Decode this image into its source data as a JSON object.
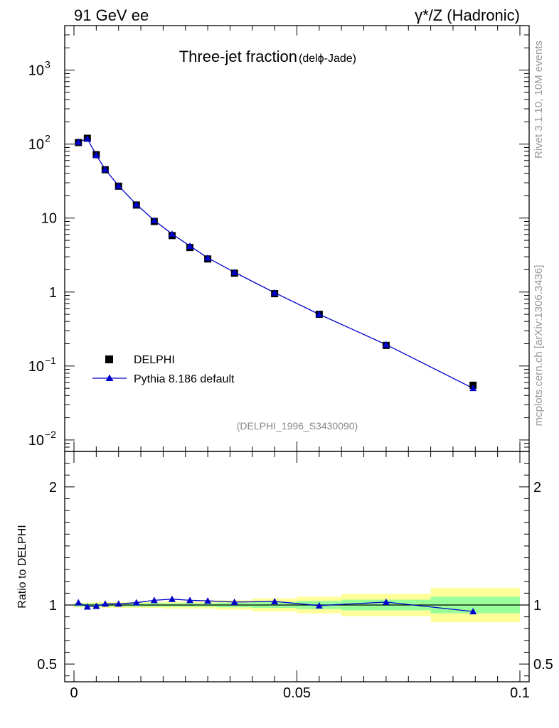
{
  "header": {
    "left": "91 GeV ee",
    "right": "γ*/Z (Hadronic)"
  },
  "side_text": {
    "rivet": "Rivet 3.1.10,  10M events",
    "mcplots": "mcplots.cern.ch [arXiv:1306.3436]"
  },
  "chart_data": [
    {
      "type": "scatter",
      "panel": "main",
      "title": "Three-jet fraction",
      "subtitle": "(delϕ-Jade)",
      "watermark": "(DELPHI_1996_S3430090)",
      "yscale": "log",
      "xlim": [
        0,
        0.1
      ],
      "ylim": [
        0.007,
        4000
      ],
      "ytick_labels": [
        {
          "value": 1000,
          "base": "10",
          "exp": "3"
        },
        {
          "value": 100,
          "base": "10",
          "exp": "2"
        },
        {
          "value": 10,
          "base": "10",
          "exp": ""
        },
        {
          "value": 1,
          "base": "1",
          "exp": ""
        },
        {
          "value": 0.1,
          "base": "10",
          "exp": "−1"
        },
        {
          "value": 0.01,
          "base": "10",
          "exp": "−2"
        }
      ],
      "legend": {
        "position": "lower-left",
        "entries": [
          "DELPHI",
          "Pythia 8.186 default"
        ]
      },
      "series": [
        {
          "name": "DELPHI",
          "marker": "square",
          "color": "#000000",
          "x": [
            0.001,
            0.003,
            0.005,
            0.007,
            0.01,
            0.014,
            0.018,
            0.022,
            0.026,
            0.03,
            0.036,
            0.045,
            0.055,
            0.07,
            0.0895
          ],
          "y": [
            105,
            120,
            72,
            45,
            27,
            15,
            9,
            5.8,
            4,
            2.8,
            1.8,
            0.95,
            0.5,
            0.19,
            0.055
          ]
        },
        {
          "name": "Pythia 8.186 default",
          "marker": "triangle",
          "color": "#0000cc",
          "x": [
            0.001,
            0.003,
            0.005,
            0.007,
            0.01,
            0.014,
            0.018,
            0.022,
            0.026,
            0.03,
            0.036,
            0.045,
            0.055,
            0.07,
            0.0895
          ],
          "y": [
            107,
            118,
            71,
            45.5,
            27.3,
            15.3,
            9.3,
            6.1,
            4.2,
            2.9,
            1.85,
            0.98,
            0.5,
            0.195,
            0.05
          ]
        }
      ]
    },
    {
      "type": "line",
      "panel": "ratio",
      "ylabel": "Ratio to DELPHI",
      "xlabel": "",
      "xlim": [
        0,
        0.1
      ],
      "ylim": [
        0.35,
        2.3
      ],
      "ytick_labels": [
        "2",
        "1",
        "0.5"
      ],
      "ytick_values": [
        2,
        1,
        0.5
      ],
      "xtick_labels": [
        "0",
        "0.05",
        "0.1"
      ],
      "xtick_values": [
        0,
        0.05,
        0.1
      ],
      "bands": {
        "bin_edges": [
          0,
          0.002,
          0.004,
          0.006,
          0.008,
          0.012,
          0.016,
          0.02,
          0.024,
          0.028,
          0.032,
          0.04,
          0.05,
          0.06,
          0.08,
          0.1
        ],
        "stat_low": [
          0.985,
          0.985,
          0.985,
          0.985,
          0.985,
          0.985,
          0.985,
          0.985,
          0.985,
          0.985,
          0.98,
          0.975,
          0.965,
          0.955,
          0.93
        ],
        "stat_high": [
          1.015,
          1.015,
          1.015,
          1.015,
          1.015,
          1.015,
          1.015,
          1.015,
          1.015,
          1.015,
          1.02,
          1.025,
          1.035,
          1.045,
          1.07
        ],
        "total_low": [
          0.98,
          0.98,
          0.975,
          0.975,
          0.975,
          0.975,
          0.975,
          0.97,
          0.97,
          0.97,
          0.96,
          0.945,
          0.93,
          0.905,
          0.855
        ],
        "total_high": [
          1.02,
          1.02,
          1.025,
          1.025,
          1.025,
          1.025,
          1.025,
          1.03,
          1.03,
          1.03,
          1.04,
          1.055,
          1.07,
          1.095,
          1.145
        ]
      },
      "series": [
        {
          "name": "Pythia 8.186 default",
          "color": "#0000cc",
          "x": [
            0.001,
            0.003,
            0.005,
            0.007,
            0.01,
            0.014,
            0.018,
            0.022,
            0.026,
            0.03,
            0.036,
            0.045,
            0.055,
            0.07,
            0.0895
          ],
          "y": [
            1.02,
            0.985,
            0.99,
            1.01,
            1.01,
            1.02,
            1.04,
            1.05,
            1.04,
            1.035,
            1.025,
            1.03,
            0.995,
            1.025,
            0.945
          ]
        }
      ]
    }
  ],
  "colors": {
    "band_stat": "#99ff99",
    "band_total": "#ffff99",
    "reference_line": "#000000",
    "watermark": "#888888",
    "side_text": "#999999"
  }
}
